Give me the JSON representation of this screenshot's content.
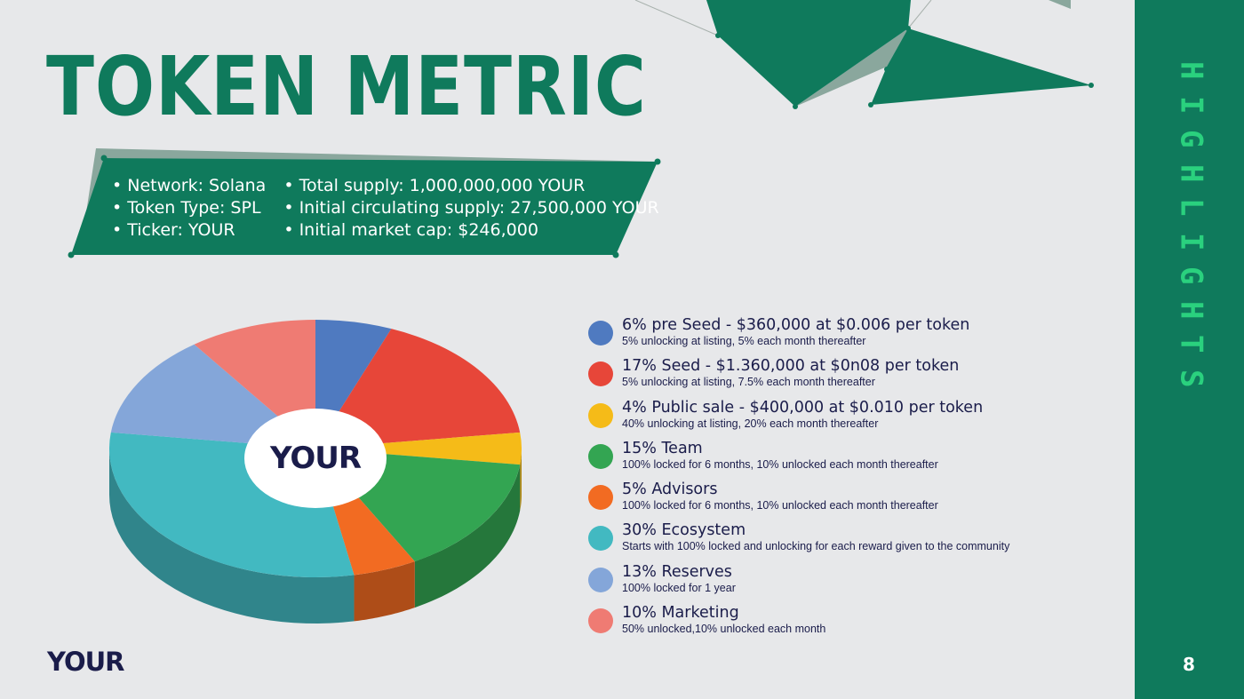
{
  "title": "TOKEN METRIC",
  "sidebar": {
    "title_letters": [
      "H",
      "I",
      "G",
      "H",
      "L",
      "I",
      "G",
      "H",
      "T",
      "S"
    ],
    "page_number": "8"
  },
  "info": {
    "col1": [
      "Network: Solana",
      "Token Type: SPL",
      "Ticker: YOUR"
    ],
    "col2": [
      "Total supply: 1,000,000,000 YOUR",
      "Initial circulating supply: 27,500,000 YOUR",
      "Initial market cap: $246,000"
    ]
  },
  "logo": {
    "text": "YOUR"
  },
  "colors": {
    "brand_green": "#0f7a5c",
    "sidebar_text": "#2ad17e",
    "navy_text": "#1a1c4a",
    "background": "#e7e8ea"
  },
  "chart_data": {
    "type": "pie",
    "style": "3d-donut",
    "labels": [
      "pre Seed",
      "Seed",
      "Public sale",
      "Team",
      "Advisors",
      "Ecosystem",
      "Reserves",
      "Marketing"
    ],
    "values": [
      6,
      17,
      4,
      15,
      5,
      30,
      13,
      10
    ],
    "colors": [
      "#4f7ac0",
      "#e74639",
      "#f5bb18",
      "#33a552",
      "#f26b22",
      "#42b9c1",
      "#84a6d9",
      "#ef7b73"
    ],
    "legend_placement": "right",
    "legend": [
      {
        "label": "6% pre Seed - $360,000 at $0.006 per token",
        "desc": "5% unlocking at listing, 5% each month thereafter"
      },
      {
        "label": "17% Seed - $1.360,000 at $0n08 per token",
        "desc": "5% unlocking at listing, 7.5% each month thereafter"
      },
      {
        "label": "4% Public sale - $400,000 at $0.010 per token",
        "desc": "40% unlocking at listing, 20% each month thereafter"
      },
      {
        "label": "15% Team",
        "desc": "100% locked for 6 months, 10% unlocked each month thereafter"
      },
      {
        "label": "5% Advisors",
        "desc": "100% locked for 6 months, 10% unlocked each month thereafter"
      },
      {
        "label": "30% Ecosystem",
        "desc": "Starts with 100% locked and unlocking for each reward given to the community"
      },
      {
        "label": "13% Reserves",
        "desc": "100% locked for 1 year"
      },
      {
        "label": "10% Marketing",
        "desc": "50% unlocked,10% unlocked each month"
      }
    ]
  }
}
